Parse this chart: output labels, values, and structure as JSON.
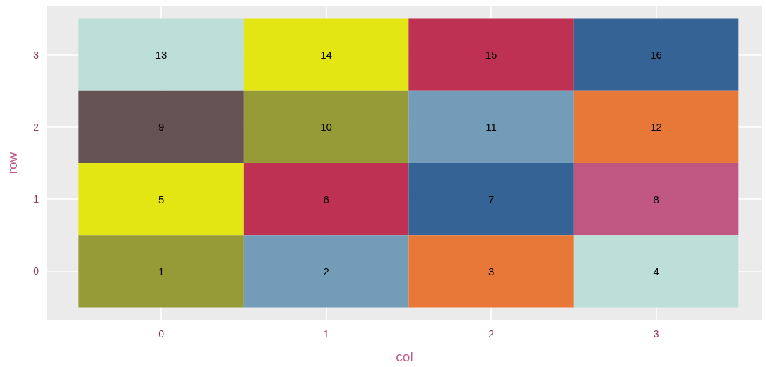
{
  "chart_data": {
    "type": "heatmap",
    "xlabel": "col",
    "ylabel": "row",
    "categories": [
      "0",
      "1",
      "2",
      "3"
    ],
    "y_categories": [
      "3",
      "2",
      "1",
      "0"
    ],
    "cells": [
      [
        13,
        14,
        15,
        16
      ],
      [
        9,
        10,
        11,
        12
      ],
      [
        5,
        6,
        7,
        8
      ],
      [
        1,
        2,
        3,
        4
      ]
    ],
    "colors": [
      [
        "#bddfd8",
        "#e4e613",
        "#be3152",
        "#366396"
      ],
      [
        "#665356",
        "#969b38",
        "#739cb8",
        "#e77838"
      ],
      [
        "#e4e613",
        "#be3152",
        "#366396",
        "#c05783"
      ],
      [
        "#969b38",
        "#739cb8",
        "#e77838",
        "#bddfd8"
      ]
    ],
    "data_labels": true,
    "grid": true
  }
}
